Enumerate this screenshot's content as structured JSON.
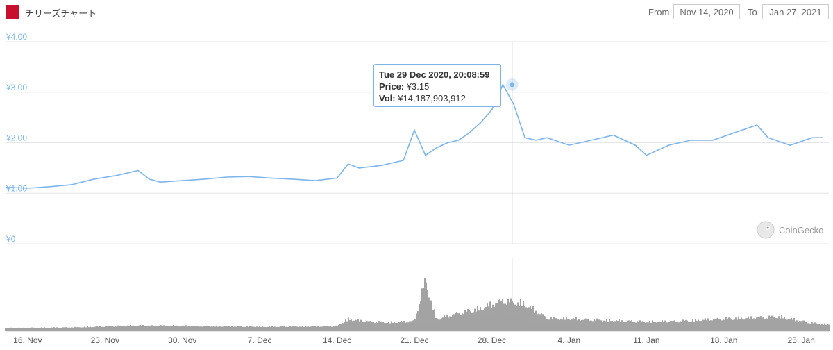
{
  "header": {
    "title": "チリーズチャート",
    "from_label": "From",
    "from_value": "Nov 14, 2020",
    "to_label": "To",
    "to_value": "Jan 27, 2021"
  },
  "tooltip": {
    "date": "Tue 29 Dec 2020, 20:08:59",
    "price_label": "Price:",
    "price_value": "¥3.15",
    "vol_label": "Vol:",
    "vol_value": "¥14,187,903,912"
  },
  "credit": "CoinGecko",
  "colors": {
    "price_line": "#7cb5ec",
    "volume": "#666666",
    "grid": "#e6e6e6",
    "axis_label": "#7cb5ec",
    "brand": "#c8102e"
  },
  "chart_data": {
    "type": "line",
    "x_tick_labels": [
      "16. Nov",
      "23. Nov",
      "30. Nov",
      "7. Dec",
      "14. Dec",
      "21. Dec",
      "28. Dec",
      "4. Jan",
      "11. Jan",
      "18. Jan",
      "25. Jan"
    ],
    "y_tick_labels": [
      "¥0",
      "¥1.00",
      "¥2.00",
      "¥3.00",
      "¥4.00"
    ],
    "ylim": [
      0,
      4
    ],
    "grid": true,
    "price_series": {
      "x": [
        "2020-11-14",
        "2020-11-16",
        "2020-11-18",
        "2020-11-20",
        "2020-11-22",
        "2020-11-24",
        "2020-11-26",
        "2020-11-27",
        "2020-11-28",
        "2020-11-30",
        "2020-12-02",
        "2020-12-04",
        "2020-12-06",
        "2020-12-08",
        "2020-12-10",
        "2020-12-12",
        "2020-12-14",
        "2020-12-15",
        "2020-12-16",
        "2020-12-18",
        "2020-12-20",
        "2020-12-21",
        "2020-12-22",
        "2020-12-23",
        "2020-12-24",
        "2020-12-25",
        "2020-12-26",
        "2020-12-27",
        "2020-12-28",
        "2020-12-29",
        "2020-12-30",
        "2020-12-31",
        "2021-01-01",
        "2021-01-02",
        "2021-01-04",
        "2021-01-06",
        "2021-01-08",
        "2021-01-10",
        "2021-01-11",
        "2021-01-13",
        "2021-01-15",
        "2021-01-17",
        "2021-01-19",
        "2021-01-21",
        "2021-01-22",
        "2021-01-24",
        "2021-01-26",
        "2021-01-27"
      ],
      "y": [
        1.12,
        1.1,
        1.13,
        1.17,
        1.28,
        1.35,
        1.45,
        1.28,
        1.22,
        1.25,
        1.28,
        1.32,
        1.33,
        1.3,
        1.28,
        1.25,
        1.3,
        1.58,
        1.5,
        1.55,
        1.65,
        2.25,
        1.75,
        1.9,
        2.0,
        2.05,
        2.2,
        2.4,
        2.65,
        3.15,
        2.75,
        2.1,
        2.05,
        2.1,
        1.95,
        2.05,
        2.15,
        1.95,
        1.75,
        1.95,
        2.05,
        2.05,
        2.2,
        2.35,
        2.1,
        1.95,
        2.1,
        2.1
      ]
    },
    "volume_series": {
      "x": [
        "2020-11-14",
        "2020-11-20",
        "2020-11-26",
        "2020-12-02",
        "2020-12-08",
        "2020-12-14",
        "2020-12-15",
        "2020-12-17",
        "2020-12-19",
        "2020-12-21",
        "2020-12-22",
        "2020-12-23",
        "2020-12-25",
        "2020-12-27",
        "2020-12-29",
        "2020-12-31",
        "2021-01-02",
        "2021-01-05",
        "2021-01-08",
        "2021-01-11",
        "2021-01-14",
        "2021-01-17",
        "2021-01-20",
        "2021-01-23",
        "2021-01-26",
        "2021-01-27"
      ],
      "relative": [
        0.04,
        0.05,
        0.08,
        0.07,
        0.06,
        0.07,
        0.18,
        0.14,
        0.13,
        0.15,
        0.8,
        0.18,
        0.28,
        0.35,
        0.48,
        0.42,
        0.2,
        0.18,
        0.16,
        0.14,
        0.15,
        0.18,
        0.2,
        0.22,
        0.12,
        0.1
      ]
    }
  }
}
